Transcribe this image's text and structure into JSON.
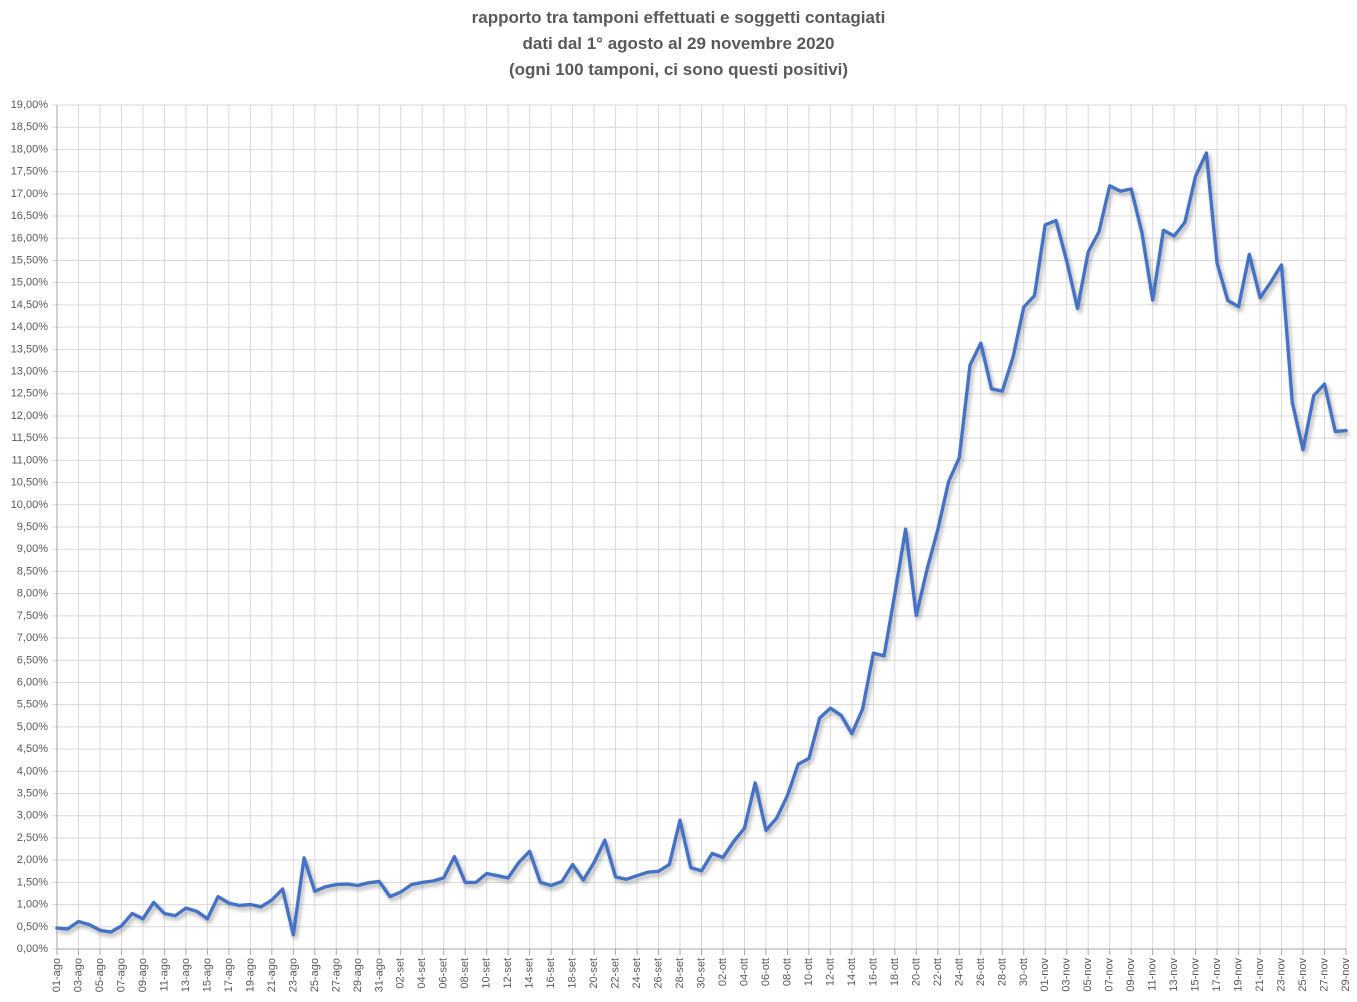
{
  "page": {
    "background": "#ffffff"
  },
  "chart_data": {
    "type": "line",
    "title": "rapporto tra tamponi effettuati e soggetti contagiati",
    "subtitle": "dati dal 1° agosto al 29 novembre 2020",
    "subtitle2": "(ogni 100 tamponi, ci sono questi positivi)",
    "legend": "none",
    "grid": true,
    "x_tick_every": 2,
    "x": [
      "01-ago",
      "02-ago",
      "03-ago",
      "04-ago",
      "05-ago",
      "06-ago",
      "07-ago",
      "08-ago",
      "09-ago",
      "10-ago",
      "11-ago",
      "12-ago",
      "13-ago",
      "14-ago",
      "15-ago",
      "16-ago",
      "17-ago",
      "18-ago",
      "19-ago",
      "20-ago",
      "21-ago",
      "22-ago",
      "23-ago",
      "24-ago",
      "25-ago",
      "26-ago",
      "27-ago",
      "28-ago",
      "29-ago",
      "30-ago",
      "31-ago",
      "01-set",
      "02-set",
      "03-set",
      "04-set",
      "05-set",
      "06-set",
      "07-set",
      "08-set",
      "09-set",
      "10-set",
      "11-set",
      "12-set",
      "13-set",
      "14-set",
      "15-set",
      "16-set",
      "17-set",
      "18-set",
      "19-set",
      "20-set",
      "21-set",
      "22-set",
      "23-set",
      "24-set",
      "25-set",
      "26-set",
      "27-set",
      "28-set",
      "29-set",
      "30-set",
      "01-ott",
      "02-ott",
      "03-ott",
      "04-ott",
      "05-ott",
      "06-ott",
      "07-ott",
      "08-ott",
      "09-ott",
      "10-ott",
      "11-ott",
      "12-ott",
      "13-ott",
      "14-ott",
      "15-ott",
      "16-ott",
      "17-ott",
      "18-ott",
      "19-ott",
      "20-ott",
      "21-ott",
      "22-ott",
      "23-ott",
      "24-ott",
      "25-ott",
      "26-ott",
      "27-ott",
      "28-ott",
      "29-ott",
      "30-ott",
      "31-ott",
      "01-nov",
      "02-nov",
      "03-nov",
      "04-nov",
      "05-nov",
      "06-nov",
      "07-nov",
      "08-nov",
      "09-nov",
      "10-nov",
      "11-nov",
      "12-nov",
      "13-nov",
      "14-nov",
      "15-nov",
      "16-nov",
      "17-nov",
      "18-nov",
      "19-nov",
      "20-nov",
      "21-nov",
      "22-nov",
      "23-nov",
      "24-nov",
      "25-nov",
      "26-nov",
      "27-nov",
      "28-nov",
      "29-nov"
    ],
    "values": [
      0.47,
      0.45,
      0.62,
      0.55,
      0.42,
      0.38,
      0.52,
      0.8,
      0.68,
      1.05,
      0.8,
      0.75,
      0.92,
      0.85,
      0.68,
      1.18,
      1.03,
      0.98,
      1.0,
      0.95,
      1.1,
      1.35,
      0.32,
      2.05,
      1.3,
      1.4,
      1.45,
      1.46,
      1.43,
      1.49,
      1.52,
      1.18,
      1.28,
      1.45,
      1.5,
      1.53,
      1.6,
      2.08,
      1.5,
      1.5,
      1.7,
      1.65,
      1.6,
      1.95,
      2.2,
      1.5,
      1.43,
      1.52,
      1.9,
      1.55,
      1.95,
      2.45,
      1.62,
      1.57,
      1.65,
      1.73,
      1.75,
      1.9,
      2.9,
      1.83,
      1.76,
      2.15,
      2.06,
      2.42,
      2.72,
      3.74,
      2.67,
      2.95,
      3.45,
      4.16,
      4.29,
      5.2,
      5.42,
      5.26,
      4.85,
      5.4,
      6.66,
      6.6,
      8.0,
      9.45,
      7.51,
      8.55,
      9.44,
      10.52,
      11.06,
      13.14,
      13.64,
      12.61,
      12.56,
      13.32,
      14.45,
      14.71,
      16.3,
      16.4,
      15.49,
      14.42,
      15.69,
      16.14,
      17.18,
      17.06,
      17.11,
      16.13,
      14.61,
      16.18,
      16.05,
      16.36,
      17.4,
      17.92,
      15.44,
      14.6,
      14.46,
      15.64,
      14.66,
      15.01,
      15.4,
      12.31,
      11.24,
      12.46,
      12.72,
      11.65,
      11.67
    ],
    "ylabel": "",
    "xlabel": "",
    "y_axis": {
      "min": 0,
      "max": 19,
      "step": 0.5,
      "tick_labels": [
        "19,00%",
        "18,50%",
        "18,00%",
        "17,50%",
        "17,00%",
        "16,50%",
        "16,00%",
        "15,50%",
        "15,00%",
        "14,50%",
        "14,00%",
        "13,50%",
        "13,00%",
        "12,50%",
        "12,00%",
        "11,50%",
        "11,00%",
        "10,50%",
        "10,00%",
        "9,50%",
        "9,00%",
        "8,50%",
        "8,00%",
        "7,50%",
        "7,00%",
        "6,50%",
        "6,00%",
        "5,50%",
        "5,00%",
        "4,50%",
        "4,00%",
        "3,50%",
        "3,00%",
        "2,50%",
        "2,00%",
        "1,50%",
        "1,00%",
        "0,50%",
        "0,00%"
      ]
    },
    "colors": {
      "line": "#4472C4",
      "grid": "#D9D9D9",
      "axis": "#A6A6A6",
      "text": "#595959"
    }
  }
}
